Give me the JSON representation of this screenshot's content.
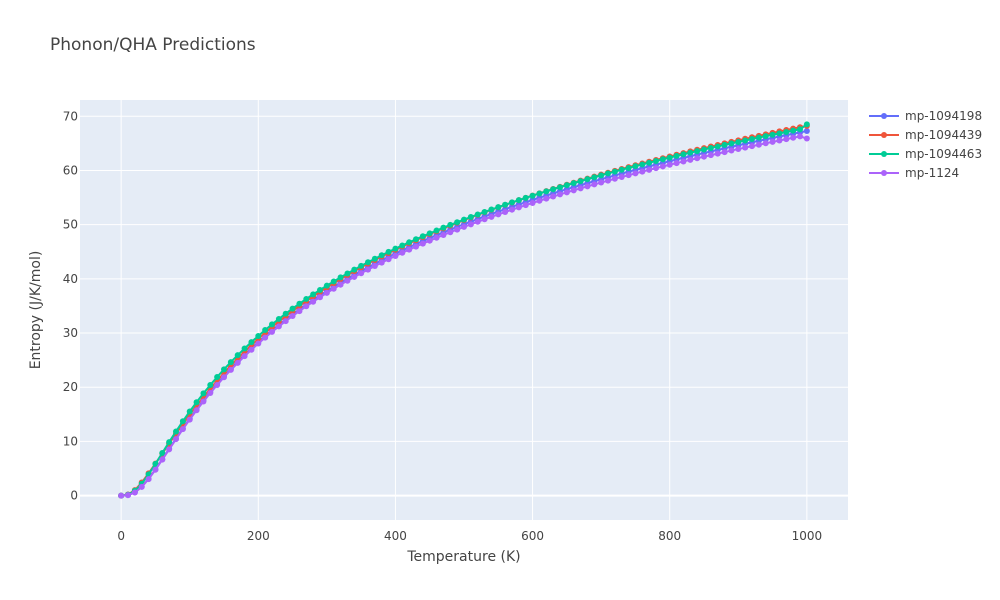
{
  "chart_data": {
    "type": "line",
    "title": "Phonon/QHA Predictions",
    "xlabel": "Temperature (K)",
    "ylabel": "Entropy (J/K/mol)",
    "xlim": [
      -60,
      1060
    ],
    "ylim": [
      -4.5,
      73
    ],
    "xticks": [
      0,
      200,
      400,
      600,
      800,
      1000
    ],
    "yticks": [
      0,
      10,
      20,
      30,
      40,
      50,
      60,
      70
    ],
    "grid": true,
    "legend_position": "top-right",
    "colors": {
      "plot_bg": "#E5ECF6",
      "grid": "#FFFFFF",
      "text": "#444444"
    },
    "x": [
      0,
      10,
      20,
      30,
      40,
      50,
      60,
      70,
      80,
      90,
      100,
      110,
      120,
      130,
      140,
      150,
      160,
      170,
      180,
      190,
      200,
      210,
      220,
      230,
      240,
      250,
      260,
      270,
      280,
      290,
      300,
      310,
      320,
      330,
      340,
      350,
      360,
      370,
      380,
      390,
      400,
      410,
      420,
      430,
      440,
      450,
      460,
      470,
      480,
      490,
      500,
      510,
      520,
      530,
      540,
      550,
      560,
      570,
      580,
      590,
      600,
      610,
      620,
      630,
      640,
      650,
      660,
      670,
      680,
      690,
      700,
      710,
      720,
      730,
      740,
      750,
      760,
      770,
      780,
      790,
      800,
      810,
      820,
      830,
      840,
      850,
      860,
      870,
      880,
      890,
      900,
      910,
      920,
      930,
      940,
      950,
      960,
      970,
      980,
      990,
      1000
    ],
    "series": [
      {
        "name": "mp-1094198",
        "color": "#636EFA",
        "values": [
          0,
          0.09,
          0.59,
          1.63,
          3.09,
          4.84,
          6.72,
          8.64,
          10.55,
          12.41,
          14.2,
          15.92,
          17.56,
          19.13,
          20.63,
          22.06,
          23.42,
          24.73,
          25.98,
          27.18,
          28.33,
          29.44,
          30.5,
          31.52,
          32.51,
          33.46,
          34.38,
          35.27,
          36.13,
          36.96,
          37.76,
          38.54,
          39.3,
          40.03,
          40.75,
          41.44,
          42.12,
          42.78,
          43.42,
          44.05,
          44.66,
          45.26,
          45.84,
          46.41,
          46.97,
          47.51,
          48.05,
          48.57,
          49.09,
          49.59,
          50.08,
          50.57,
          51.04,
          51.51,
          51.97,
          52.42,
          52.86,
          53.3,
          53.73,
          54.15,
          54.56,
          54.97,
          55.37,
          55.77,
          56.16,
          56.54,
          56.92,
          57.29,
          57.66,
          58.02,
          58.38,
          58.73,
          59.08,
          59.42,
          59.76,
          60.1,
          60.43,
          60.75,
          61.07,
          61.39,
          61.71,
          62.02,
          62.32,
          62.63,
          62.93,
          63.22,
          63.51,
          63.8,
          64.09,
          64.37,
          64.65,
          64.93,
          65.2,
          65.47,
          65.74,
          66.0,
          66.26,
          66.52,
          66.78,
          67.03,
          67.28
        ]
      },
      {
        "name": "mp-1094439",
        "color": "#EF553B",
        "values": [
          0,
          0.2,
          1.01,
          2.41,
          4.11,
          5.91,
          7.76,
          9.6,
          11.42,
          13.19,
          14.92,
          16.58,
          18.18,
          19.73,
          21.21,
          22.63,
          23.99,
          25.3,
          26.55,
          27.75,
          28.91,
          30.02,
          31.09,
          32.12,
          33.11,
          34.07,
          35.0,
          35.89,
          36.76,
          37.59,
          38.41,
          39.19,
          39.96,
          40.7,
          41.42,
          42.12,
          42.8,
          43.47,
          44.12,
          44.75,
          45.37,
          45.97,
          46.56,
          47.13,
          47.7,
          48.25,
          48.79,
          49.32,
          49.83,
          50.34,
          50.84,
          51.33,
          51.81,
          52.28,
          52.74,
          53.2,
          53.64,
          54.08,
          54.52,
          54.94,
          55.36,
          55.77,
          56.18,
          56.58,
          56.97,
          57.36,
          57.74,
          58.12,
          58.49,
          58.85,
          59.22,
          59.57,
          59.92,
          60.27,
          60.61,
          60.95,
          61.28,
          61.61,
          61.94,
          62.26,
          62.58,
          62.89,
          63.2,
          63.51,
          63.81,
          64.11,
          64.41,
          64.7,
          64.99,
          65.28,
          65.56,
          65.84,
          66.12,
          66.39,
          66.66,
          66.93,
          67.2,
          67.46,
          67.72,
          67.98,
          68.23
        ]
      },
      {
        "name": "mp-1094463",
        "color": "#00CC96",
        "values": [
          0,
          0.17,
          0.89,
          2.2,
          3.92,
          5.85,
          7.87,
          9.88,
          11.84,
          13.72,
          15.52,
          17.23,
          18.86,
          20.41,
          21.89,
          23.3,
          24.64,
          25.92,
          27.15,
          28.33,
          29.46,
          30.55,
          31.59,
          32.6,
          33.57,
          34.51,
          35.41,
          36.29,
          37.13,
          37.95,
          38.75,
          39.52,
          40.27,
          40.99,
          41.7,
          42.39,
          43.06,
          43.71,
          44.35,
          44.97,
          45.57,
          46.16,
          46.74,
          47.3,
          47.86,
          48.39,
          48.92,
          49.44,
          49.95,
          50.44,
          50.93,
          51.41,
          51.88,
          52.34,
          52.79,
          53.23,
          53.67,
          54.1,
          54.52,
          54.94,
          55.34,
          55.75,
          56.14,
          56.53,
          56.91,
          57.29,
          57.66,
          58.03,
          58.39,
          58.75,
          59.1,
          59.45,
          59.79,
          60.13,
          60.46,
          60.79,
          61.11,
          61.43,
          61.75,
          62.06,
          62.37,
          62.68,
          62.98,
          63.28,
          63.57,
          63.86,
          64.15,
          64.43,
          64.71,
          64.99,
          65.26,
          65.53,
          65.8,
          66.07,
          66.33,
          66.59,
          66.84,
          67.1,
          67.35,
          67.6,
          68.5
        ]
      },
      {
        "name": "mp-1124",
        "color": "#AB63FA",
        "values": [
          0,
          0.09,
          0.58,
          1.61,
          3.05,
          4.77,
          6.63,
          8.53,
          10.42,
          12.26,
          14.03,
          15.74,
          17.37,
          18.93,
          20.42,
          21.84,
          23.2,
          24.49,
          25.73,
          26.92,
          28.06,
          29.16,
          30.21,
          31.22,
          32.2,
          33.14,
          34.05,
          34.93,
          35.78,
          36.6,
          37.4,
          38.17,
          38.92,
          39.65,
          40.35,
          41.04,
          41.71,
          42.36,
          43.0,
          43.62,
          44.22,
          44.81,
          45.39,
          45.95,
          46.5,
          47.04,
          47.57,
          48.09,
          48.6,
          49.09,
          49.58,
          50.06,
          50.53,
          50.99,
          51.44,
          51.89,
          52.33,
          52.76,
          53.18,
          53.6,
          54.0,
          54.41,
          54.8,
          55.19,
          55.58,
          55.96,
          56.33,
          56.7,
          57.06,
          57.42,
          57.77,
          58.12,
          58.46,
          58.8,
          59.13,
          59.46,
          59.79,
          60.11,
          60.43,
          60.74,
          61.05,
          61.36,
          61.66,
          61.96,
          62.25,
          62.54,
          62.83,
          63.11,
          63.39,
          63.67,
          63.95,
          64.22,
          64.49,
          64.75,
          65.01,
          65.27,
          65.53,
          65.78,
          66.03,
          66.28,
          65.9
        ]
      }
    ]
  }
}
